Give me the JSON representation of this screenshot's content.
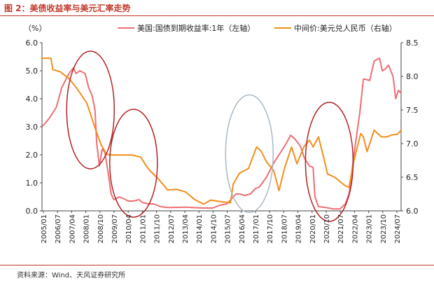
{
  "figure": {
    "title": "图 2：美债收益率与美元汇率走势",
    "source": "资料来源：Wind、天风证券研究所"
  },
  "chart_data": {
    "type": "line",
    "title": "美债收益率与美元汇率走势",
    "unit_label": "（%）",
    "x_ticks": [
      "2005/01",
      "2006/07",
      "2007/04",
      "2008/01",
      "2008/10",
      "2009/07",
      "2010/04",
      "2011/01",
      "2011/10",
      "2012/07",
      "2013/04",
      "2014/01",
      "2014/10",
      "2015/07",
      "2016/04",
      "2017/01",
      "2017/10",
      "2018/07",
      "2019/04",
      "2020/01",
      "2020/10",
      "2021/07",
      "2022/04",
      "2023/01",
      "2023/10",
      "2024/07"
    ],
    "left_axis": {
      "min": 0,
      "max": 6,
      "ticks": [
        "0.0",
        "1.0",
        "2.0",
        "3.0",
        "4.0",
        "5.0",
        "6.0"
      ]
    },
    "right_axis": {
      "min": 6.0,
      "max": 8.5,
      "ticks": [
        "6.0",
        "6.5",
        "7.0",
        "7.5",
        "8.0",
        "8.5"
      ]
    },
    "legend_position": "top",
    "series": [
      {
        "name": "美国:国债到期收益率:1年（左轴）",
        "axis": "left",
        "color": "#ee6e73",
        "points": [
          [
            2005.0,
            3.0
          ],
          [
            2005.4,
            3.3
          ],
          [
            2005.8,
            3.7
          ],
          [
            2006.1,
            4.4
          ],
          [
            2006.5,
            4.9
          ],
          [
            2006.75,
            5.1
          ],
          [
            2006.9,
            4.9
          ],
          [
            2007.1,
            5.0
          ],
          [
            2007.4,
            4.9
          ],
          [
            2007.6,
            4.4
          ],
          [
            2007.8,
            4.1
          ],
          [
            2007.95,
            3.6
          ],
          [
            2008.05,
            2.4
          ],
          [
            2008.2,
            1.6
          ],
          [
            2008.35,
            2.2
          ],
          [
            2008.5,
            2.1
          ],
          [
            2008.7,
            1.3
          ],
          [
            2008.85,
            0.6
          ],
          [
            2009.0,
            0.4
          ],
          [
            2009.3,
            0.5
          ],
          [
            2009.5,
            0.45
          ],
          [
            2009.8,
            0.35
          ],
          [
            2010.1,
            0.35
          ],
          [
            2010.4,
            0.4
          ],
          [
            2010.6,
            0.3
          ],
          [
            2010.9,
            0.25
          ],
          [
            2011.2,
            0.25
          ],
          [
            2011.6,
            0.15
          ],
          [
            2012.0,
            0.12
          ],
          [
            2013.0,
            0.13
          ],
          [
            2014.0,
            0.1
          ],
          [
            2014.5,
            0.1
          ],
          [
            2014.9,
            0.2
          ],
          [
            2015.3,
            0.25
          ],
          [
            2015.8,
            0.6
          ],
          [
            2016.0,
            0.6
          ],
          [
            2016.3,
            0.55
          ],
          [
            2016.6,
            0.6
          ],
          [
            2016.9,
            0.8
          ],
          [
            2017.1,
            0.85
          ],
          [
            2017.5,
            1.2
          ],
          [
            2017.9,
            1.7
          ],
          [
            2018.2,
            2.0
          ],
          [
            2018.6,
            2.4
          ],
          [
            2018.85,
            2.7
          ],
          [
            2019.1,
            2.55
          ],
          [
            2019.4,
            2.3
          ],
          [
            2019.6,
            1.9
          ],
          [
            2019.9,
            1.6
          ],
          [
            2020.1,
            1.55
          ],
          [
            2020.2,
            0.5
          ],
          [
            2020.4,
            0.15
          ],
          [
            2020.8,
            0.12
          ],
          [
            2021.2,
            0.07
          ],
          [
            2021.6,
            0.07
          ],
          [
            2021.9,
            0.25
          ],
          [
            2022.1,
            0.6
          ],
          [
            2022.3,
            1.6
          ],
          [
            2022.5,
            2.6
          ],
          [
            2022.7,
            3.5
          ],
          [
            2022.9,
            4.7
          ],
          [
            2023.0,
            4.7
          ],
          [
            2023.25,
            4.65
          ],
          [
            2023.5,
            5.35
          ],
          [
            2023.8,
            5.45
          ],
          [
            2023.95,
            5.0
          ],
          [
            2024.1,
            5.05
          ],
          [
            2024.3,
            5.2
          ],
          [
            2024.55,
            4.8
          ],
          [
            2024.7,
            4.0
          ],
          [
            2024.85,
            4.3
          ],
          [
            2025.0,
            4.2
          ]
        ]
      },
      {
        "name": "中间价:美元兑人民币（右轴）",
        "axis": "right",
        "color": "#f28e1c",
        "points": [
          [
            2005.0,
            8.27
          ],
          [
            2005.5,
            8.27
          ],
          [
            2005.6,
            8.1
          ],
          [
            2006.0,
            8.07
          ],
          [
            2006.5,
            7.97
          ],
          [
            2007.0,
            7.8
          ],
          [
            2007.5,
            7.6
          ],
          [
            2008.0,
            7.2
          ],
          [
            2008.3,
            6.98
          ],
          [
            2008.6,
            6.84
          ],
          [
            2009.0,
            6.83
          ],
          [
            2010.0,
            6.83
          ],
          [
            2010.5,
            6.8
          ],
          [
            2010.8,
            6.67
          ],
          [
            2011.0,
            6.6
          ],
          [
            2011.5,
            6.47
          ],
          [
            2012.0,
            6.31
          ],
          [
            2012.5,
            6.32
          ],
          [
            2013.0,
            6.28
          ],
          [
            2013.5,
            6.17
          ],
          [
            2014.0,
            6.1
          ],
          [
            2014.4,
            6.16
          ],
          [
            2014.9,
            6.14
          ],
          [
            2015.5,
            6.12
          ],
          [
            2015.65,
            6.4
          ],
          [
            2016.0,
            6.56
          ],
          [
            2016.5,
            6.63
          ],
          [
            2016.95,
            6.95
          ],
          [
            2017.2,
            6.89
          ],
          [
            2017.5,
            6.73
          ],
          [
            2017.9,
            6.6
          ],
          [
            2018.2,
            6.3
          ],
          [
            2018.5,
            6.63
          ],
          [
            2018.9,
            6.95
          ],
          [
            2019.2,
            6.7
          ],
          [
            2019.6,
            6.96
          ],
          [
            2019.9,
            7.05
          ],
          [
            2020.1,
            6.95
          ],
          [
            2020.4,
            7.1
          ],
          [
            2020.7,
            6.78
          ],
          [
            2020.9,
            6.55
          ],
          [
            2021.3,
            6.5
          ],
          [
            2021.9,
            6.37
          ],
          [
            2022.1,
            6.35
          ],
          [
            2022.35,
            6.72
          ],
          [
            2022.75,
            7.15
          ],
          [
            2022.9,
            7.1
          ],
          [
            2023.1,
            6.88
          ],
          [
            2023.5,
            7.2
          ],
          [
            2023.9,
            7.1
          ],
          [
            2024.2,
            7.1
          ],
          [
            2024.5,
            7.13
          ],
          [
            2024.8,
            7.14
          ],
          [
            2025.0,
            7.2
          ]
        ]
      }
    ],
    "annotations": [
      {
        "shape": "ellipse",
        "color": "#b22222",
        "around": "2006/07-2008/01, 3.6%"
      },
      {
        "shape": "ellipse",
        "color": "#b22222",
        "around": "2009/07-2010/10, 1.6%"
      },
      {
        "shape": "ellipse",
        "color": "#a9b8c4",
        "around": "2015/07-2017/07, 6.5 CNY"
      },
      {
        "shape": "ellipse",
        "color": "#b22222",
        "around": "2020/01-2021/10, 1.7%"
      }
    ]
  }
}
